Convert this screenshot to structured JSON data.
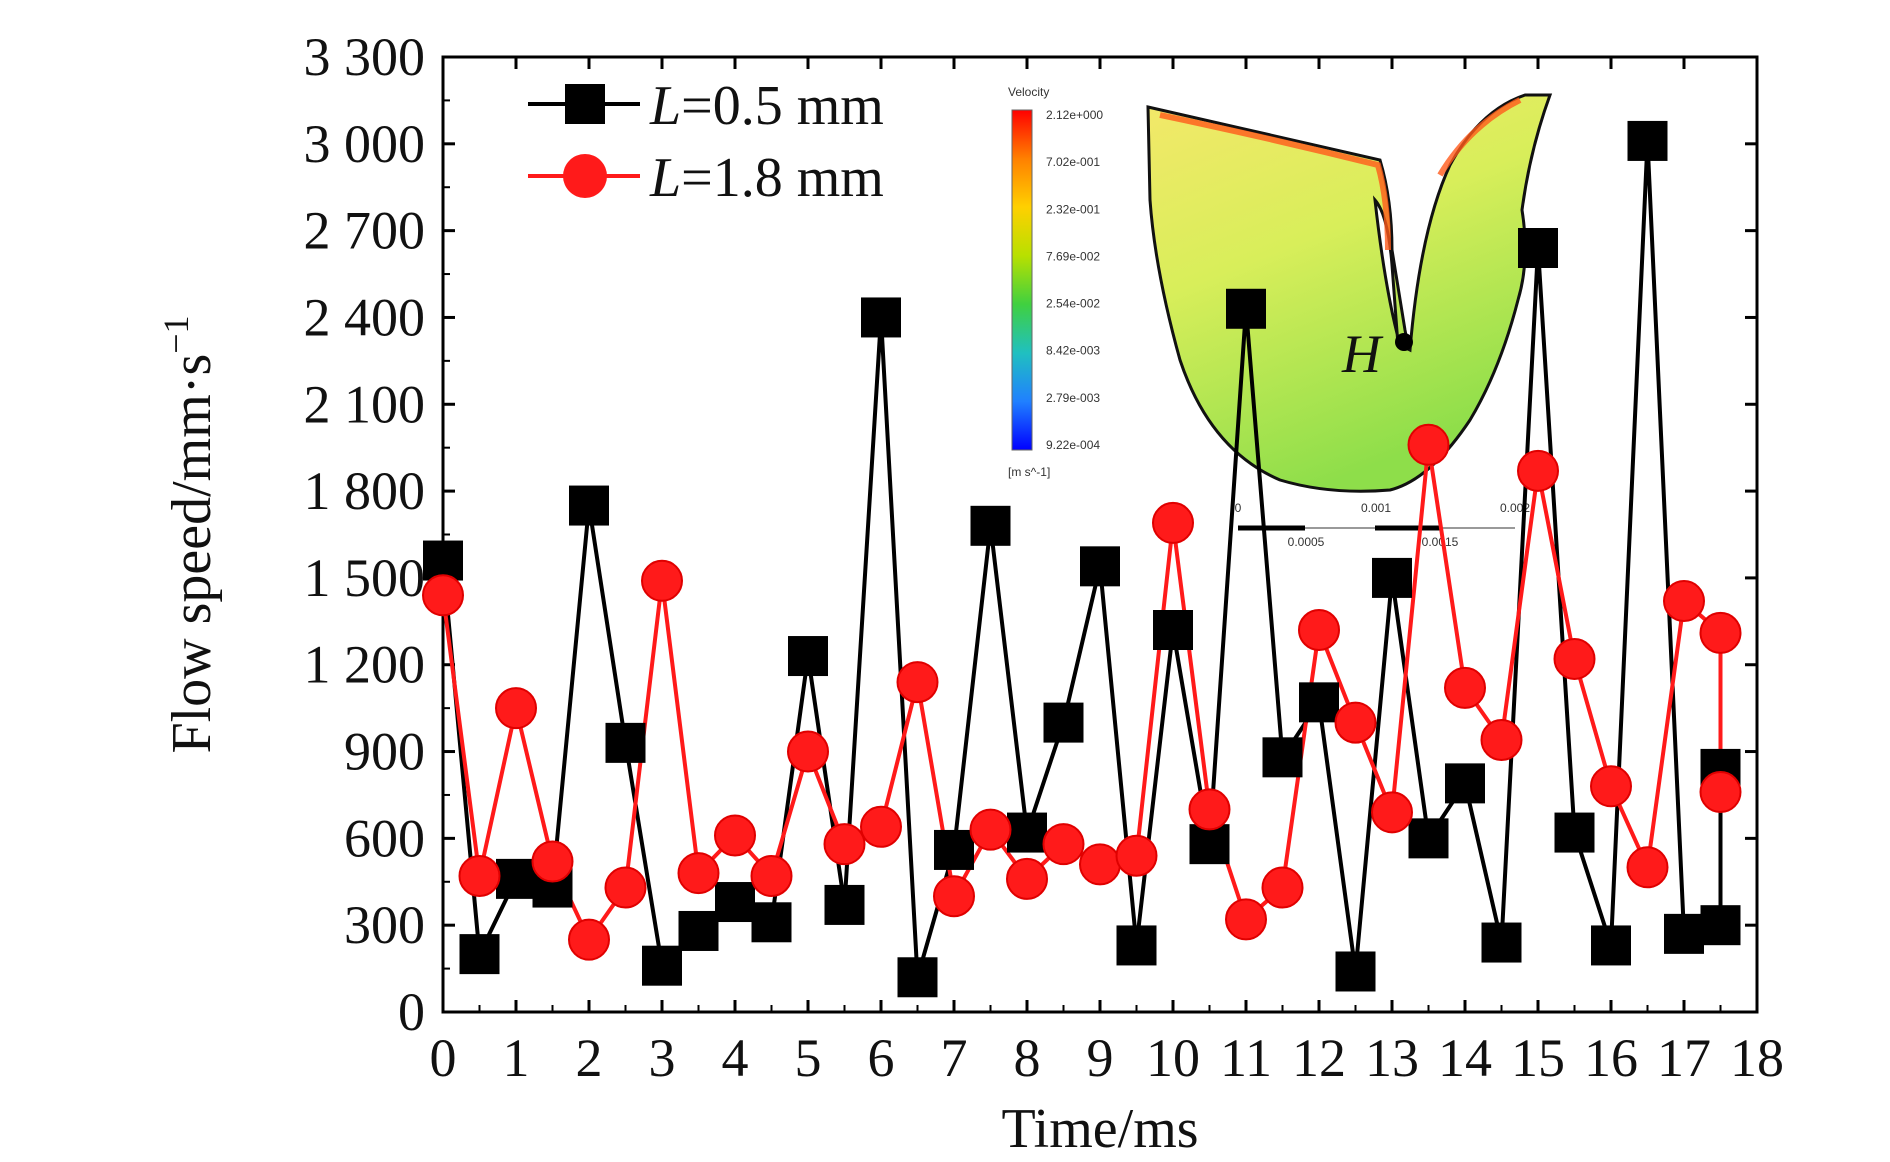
{
  "chart_data": {
    "type": "line",
    "xlabel": "Time/ms",
    "ylabel_base": "Flow speed/mm·s",
    "ylabel_sup": "−1",
    "xlim": [
      0,
      18
    ],
    "ylim": [
      0,
      3300
    ],
    "x_ticks": [
      "0",
      "1",
      "2",
      "3",
      "4",
      "5",
      "6",
      "7",
      "8",
      "9",
      "10",
      "11",
      "12",
      "13",
      "14",
      "15",
      "16",
      "17",
      "18"
    ],
    "y_ticks": [
      "0",
      "300",
      "600",
      "900",
      "1 200",
      "1 500",
      "1 800",
      "2 100",
      "2 400",
      "2 700",
      "3 000",
      "3 300"
    ],
    "series": [
      {
        "name_italic": "L",
        "name_rest": "=0.5 mm",
        "color": "#000000",
        "marker": "square",
        "x": [
          0,
          0.5,
          1,
          1.5,
          2,
          2.5,
          3,
          3.5,
          4,
          4.5,
          5,
          5.5,
          6,
          6.5,
          7,
          7.5,
          8,
          8.5,
          9,
          9.5,
          10,
          10.5,
          11,
          11.5,
          12,
          12.5,
          13,
          13.5,
          14,
          14.5,
          15,
          15.5,
          16,
          16.5,
          17,
          17.5,
          17.5
        ],
        "y": [
          1560,
          200,
          460,
          430,
          1750,
          930,
          160,
          280,
          380,
          310,
          1230,
          370,
          2400,
          120,
          560,
          1680,
          620,
          1000,
          1540,
          230,
          1320,
          580,
          2430,
          880,
          1070,
          140,
          1500,
          600,
          790,
          240,
          2640,
          620,
          230,
          3010,
          270,
          300,
          840
        ]
      },
      {
        "name_italic": "L",
        "name_rest": "=1.8 mm",
        "color": "#ff1a1a",
        "marker": "circle",
        "x": [
          0,
          0.5,
          1,
          1.5,
          2,
          2.5,
          3,
          3.5,
          4,
          4.5,
          5,
          5.5,
          6,
          6.5,
          7,
          7.5,
          8,
          8.5,
          9,
          9.5,
          10,
          10.5,
          11,
          11.5,
          12,
          12.5,
          13,
          13.5,
          14,
          14.5,
          15,
          15.5,
          16,
          16.5,
          17,
          17.5,
          17.5
        ],
        "y": [
          1440,
          470,
          1050,
          520,
          250,
          430,
          1490,
          480,
          610,
          470,
          900,
          580,
          640,
          1140,
          400,
          630,
          460,
          580,
          510,
          540,
          1690,
          700,
          320,
          430,
          1320,
          1000,
          690,
          1960,
          1120,
          940,
          1870,
          1220,
          780,
          500,
          1420,
          1310,
          760
        ]
      }
    ],
    "legend_position": "top-left",
    "grid": false
  },
  "inset": {
    "colorbar_title": "Velocity",
    "colorbar_labels": [
      "2.12e+000",
      "7.02e-001",
      "2.32e-001",
      "7.69e-002",
      "2.54e-002",
      "8.42e-003",
      "2.79e-003",
      "9.22e-004"
    ],
    "colorbar_unit": "[m s^-1]",
    "point_label": "H",
    "scale_labels_top": [
      "0",
      "0.001",
      "0.002"
    ],
    "scale_labels_bottom": [
      "0.0005",
      "0.0015"
    ],
    "colorbar_colors": [
      "#ff0000",
      "#ff8000",
      "#ffd000",
      "#b8e000",
      "#40d040",
      "#20c0c0",
      "#2080ff",
      "#0000ff"
    ]
  }
}
